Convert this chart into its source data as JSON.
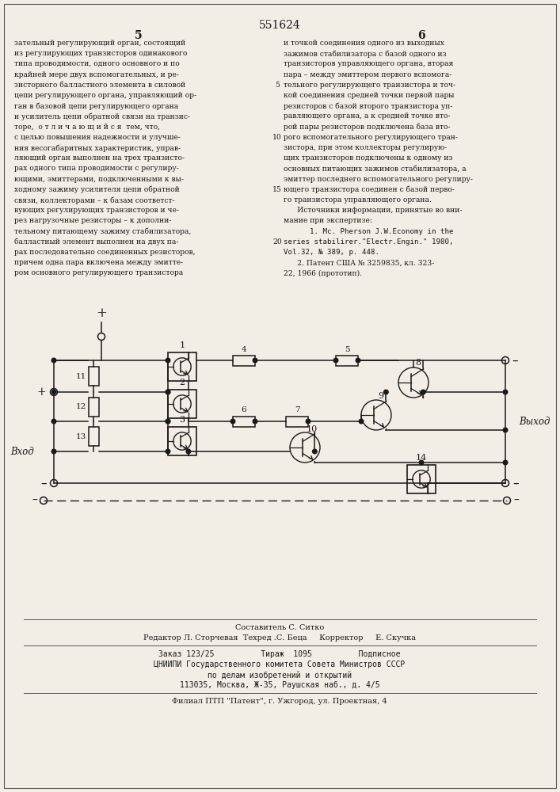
{
  "page_number_center": "551624",
  "page_left": "5",
  "page_right": "6",
  "left_lines": [
    "зательный регулирующий орган, состоящий",
    "из регулирующих транзисторов одинакового",
    "типа проводимости, одного основного и по",
    "крайней мере двух вспомогательных, и ре-",
    "зисторного балластного элемента в силовой",
    "цепи регулирующего органа, управляющий ор-",
    "ган в базовой цепи регулирующего органа",
    "и усилитель цепи обратной связи на транзис-",
    "торе,  о т л и ч а ю щ и й с я  тем, что,",
    "с целью повышения надежности и улучше-",
    "ния весогабаритных характеристик, управ-",
    "ляющий орган выполнен на трех транзисто-",
    "рах одного типа проводимости с регулиру-",
    "ющими, эмиттерами, подключенными к вы-",
    "ходному зажиму усилителя цепи обратной",
    "связи, коллекторами – к базам соответст-",
    "вующих регулирующих транзисторов и че-",
    "рез нагрузочные резисторы – к дополни-",
    "тельному питающему зажиму стабилизатора,",
    "балластный элемент выполнен на двух па-",
    "рах последовательно соединенных резисторов,",
    "причем одна пара включена между эмитте-",
    "ром основного регулирующего транзистора"
  ],
  "right_lines": [
    "и точкой соединения одного из выходных",
    "зажимов стабилизатора с базой одного из",
    "транзисторов управляющего органа, вторая",
    "пара – между эмиттером первого вспомога-",
    "тельного регулирующего транзистора и точ-",
    "кой соединения средней точки первой пары",
    "резисторов с базой второго транзистора уп-",
    "равляющего органа, а к средней точке вто-",
    "рой пары резисторов подключена база вто-",
    "рого вспомогательного регулирующего тран-",
    "зистора, при этом коллекторы регулирую-",
    "щих транзисторов подключены к одному из",
    "основных питающих зажимов стабилизатора, а",
    "эмиттер последнего вспомогательного регулиру-",
    "ющего транзистора соединен с базой перво-",
    "го транзистора управляющего органа."
  ],
  "src_lines": [
    "      Источники информации, принятые во вни-",
    "мание при экспертизе:",
    "      1. Mc. Pherson J.W.Economy in the",
    "series stabilirer.\"Electr.Engin.\" 1980,",
    "Vol.32, № 389, p. 448.",
    "      2. Патент США № 3259835, кл. 323-",
    "22, 1966 (прототип)."
  ],
  "src_mono": [
    false,
    false,
    true,
    true,
    true,
    false,
    false
  ],
  "line_nums": [
    [
      5,
      4
    ],
    [
      10,
      9
    ],
    [
      15,
      14
    ],
    [
      20,
      19
    ]
  ],
  "footer_line1": "Составитель С. Ситко",
  "footer_line2": "Редактор Л. Сторчевая  Техред .С. Беца     Корректор     Е. Скучка",
  "footer_line3": "Заказ 123/25          Тираж  1095          Подписное",
  "footer_line4": "ЦНИИПИ Государственного комитета Совета Министров СССР",
  "footer_line5": "по делам изобретений и открытий",
  "footer_line6": "113035, Москва, Ж-35, Раушская наб., д. 4/5",
  "footer_line7": "Филиал ПТП \"Патент\", г. Ужгород, ул. Проектная, 4",
  "bg_color": "#f2ede5",
  "tc": "#1a1a1a"
}
